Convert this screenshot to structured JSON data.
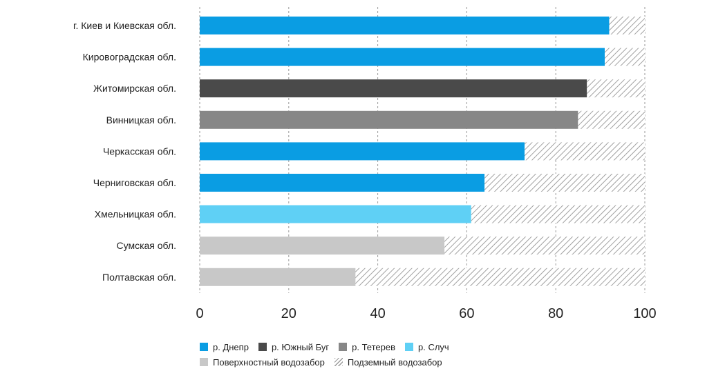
{
  "chart_data": {
    "type": "bar",
    "orientation": "horizontal",
    "stacked": true,
    "xlim": [
      0,
      100
    ],
    "xticks": [
      0,
      20,
      40,
      60,
      80,
      100
    ],
    "grid": "vertical dashed",
    "categories": [
      "г. Киев и Киевская обл.",
      "Кировоградская обл.",
      "Житомирская обл.",
      "Винницкая обл.",
      "Черкасская обл.",
      "Черниговская обл.",
      "Хмельницкая обл.",
      "Сумская обл.",
      "Полтавская обл."
    ],
    "surface_values": [
      92,
      91,
      87,
      85,
      73,
      64,
      61,
      55,
      35
    ],
    "underground_values": [
      8,
      9,
      13,
      15,
      27,
      36,
      39,
      45,
      65
    ],
    "bar_sources": [
      "dnepr",
      "dnepr",
      "yuzhny_bug",
      "teterev",
      "dnepr",
      "dnepr",
      "sluch",
      "surface",
      "surface"
    ],
    "legend": [
      {
        "key": "dnepr",
        "label": "р. Днепр",
        "color": "#0a9de3",
        "row": 0
      },
      {
        "key": "yuzhny_bug",
        "label": "р. Южный Буг",
        "color": "#4a4a4a",
        "row": 0
      },
      {
        "key": "teterev",
        "label": "р. Тетерев",
        "color": "#878787",
        "row": 0
      },
      {
        "key": "sluch",
        "label": "р. Случ",
        "color": "#5fd0f5",
        "row": 0
      },
      {
        "key": "surface",
        "label": "Поверхностный водозабор",
        "color": "#c8c8c8",
        "row": 1
      },
      {
        "key": "underground",
        "label": "Подземный водозабор",
        "color": "hatch",
        "row": 1
      }
    ],
    "title": "",
    "xlabel": "",
    "ylabel": ""
  }
}
